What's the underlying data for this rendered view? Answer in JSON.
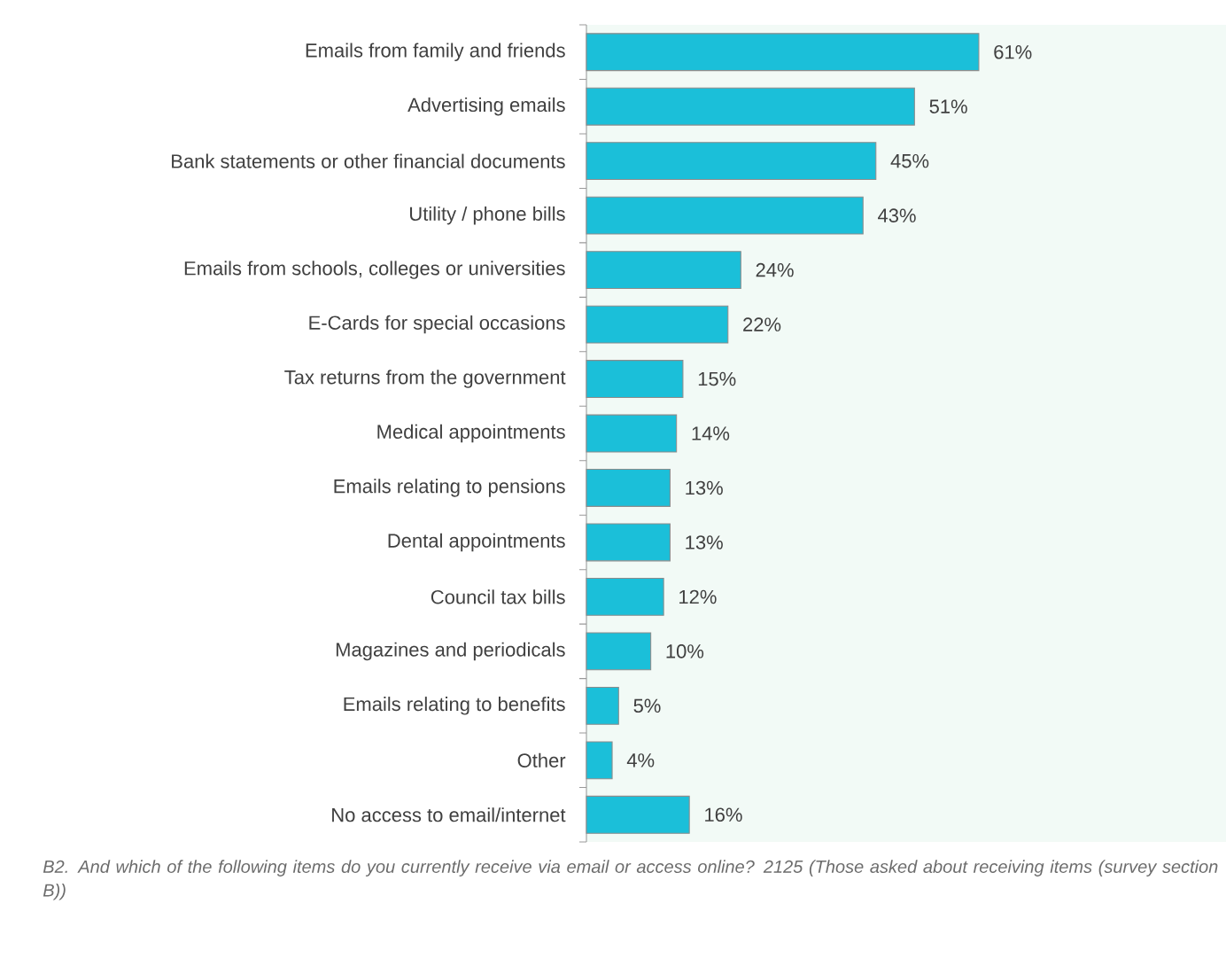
{
  "chart_data": {
    "type": "bar",
    "orientation": "horizontal",
    "categories": [
      "Emails from family and friends",
      "Advertising emails",
      "Bank statements or other financial documents",
      "Utility / phone bills",
      "Emails from schools, colleges or universities",
      "E-Cards for special occasions",
      "Tax returns from the government",
      "Medical appointments",
      "Emails relating to pensions",
      "Dental appointments",
      "Council tax bills",
      "Magazines and periodicals",
      "Emails relating to benefits",
      "Other",
      "No access to email/internet"
    ],
    "values": [
      61,
      51,
      45,
      43,
      24,
      22,
      15,
      14,
      13,
      13,
      12,
      10,
      5,
      4,
      16
    ],
    "value_labels": [
      "61%",
      "51%",
      "45%",
      "43%",
      "24%",
      "22%",
      "15%",
      "14%",
      "13%",
      "13%",
      "12%",
      "10%",
      "5%",
      "4%",
      "16%"
    ],
    "color": "#1bbfd9",
    "annotations": [
      "B2. And which of the following items do you currently receive via email or access online? 2125 (Those asked about receiving items (survey section B))"
    ]
  }
}
